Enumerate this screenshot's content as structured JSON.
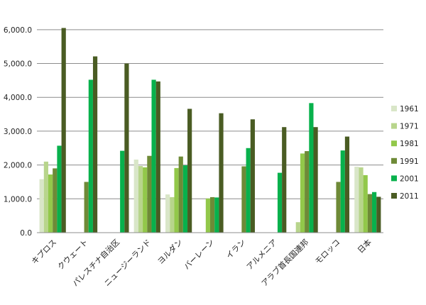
{
  "chart_data": {
    "type": "bar",
    "categories": [
      "キプロス",
      "クウェート",
      "パレスチナ自治区",
      "ニュージーランド",
      "ヨルダン",
      "バーレーン",
      "イラン",
      "アルメニア",
      "アラブ首長国連邦",
      "モロッコ",
      "日本"
    ],
    "series": [
      {
        "name": "1961",
        "color": "#d9e6c8",
        "values": [
          1580,
          null,
          null,
          2160,
          1130,
          null,
          null,
          null,
          null,
          null,
          1950
        ]
      },
      {
        "name": "1971",
        "color": "#b8d58c",
        "values": [
          2100,
          null,
          null,
          1970,
          1050,
          null,
          null,
          null,
          310,
          null,
          1930
        ]
      },
      {
        "name": "1981",
        "color": "#92c84a",
        "values": [
          1720,
          null,
          null,
          1930,
          1910,
          1010,
          null,
          null,
          2340,
          null,
          1700
        ]
      },
      {
        "name": "1991",
        "color": "#6e8a37",
        "values": [
          1900,
          1500,
          null,
          2270,
          2250,
          1050,
          1960,
          null,
          2410,
          1500,
          1140
        ]
      },
      {
        "name": "2001",
        "color": "#08b14c",
        "values": [
          2570,
          4520,
          2420,
          4520,
          1990,
          1040,
          2500,
          1770,
          3830,
          2430,
          1200
        ]
      },
      {
        "name": "2011",
        "color": "#4a5c23",
        "values": [
          6050,
          5210,
          5000,
          4470,
          3660,
          3530,
          3350,
          3120,
          3120,
          2840,
          1060
        ]
      }
    ],
    "ylim": [
      0,
      6500
    ],
    "yticks": [
      "0.0",
      "1,000.0",
      "2,000.0",
      "3,000.0",
      "4,000.0",
      "5,000.0",
      "6,000.0"
    ],
    "ytick_values": [
      0,
      1000,
      2000,
      3000,
      4000,
      5000,
      6000
    ],
    "grid": true,
    "legend_position": "right",
    "title": "",
    "xlabel": "",
    "ylabel": ""
  }
}
